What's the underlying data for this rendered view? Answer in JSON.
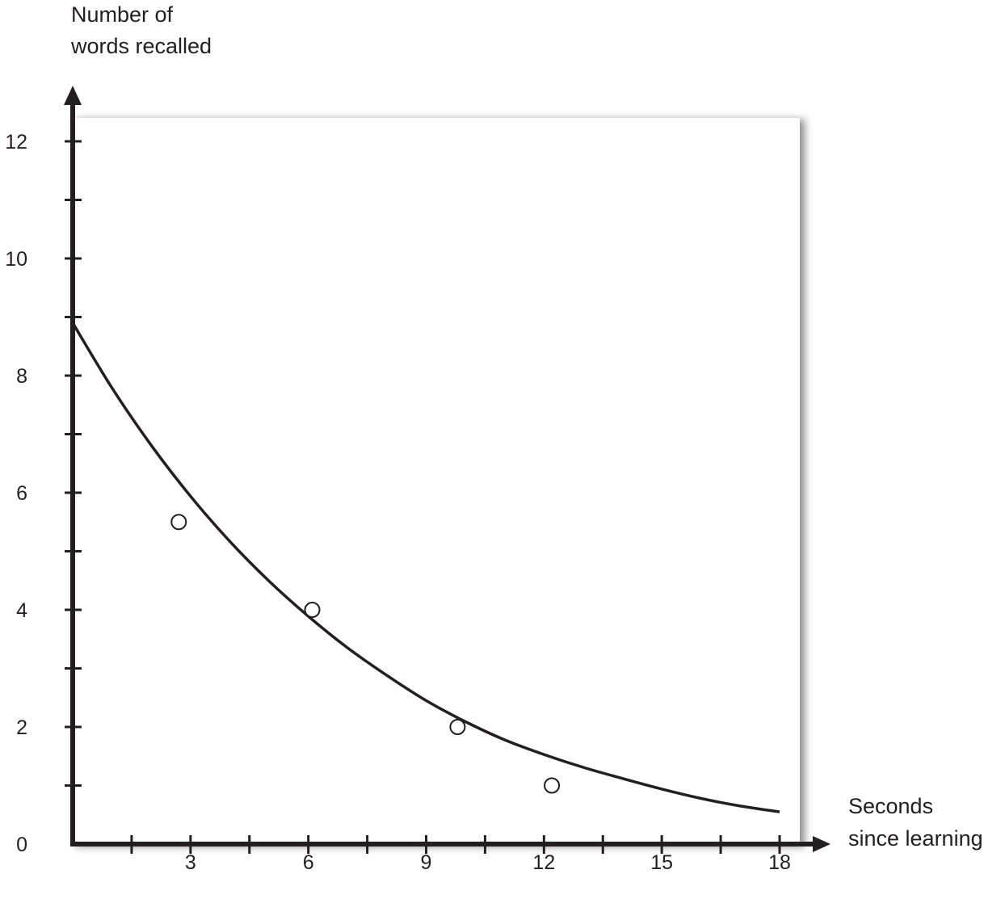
{
  "chart_data": {
    "type": "scatter",
    "title": "",
    "ylabel_lines": [
      "Number of",
      "words recalled"
    ],
    "xlabel_lines": [
      "Seconds",
      "since learning"
    ],
    "xlim": [
      0,
      18
    ],
    "ylim": [
      0,
      12
    ],
    "x_ticks": [
      3,
      6,
      9,
      12,
      15,
      18
    ],
    "x_minor_ticks": [
      1.5,
      4.5,
      7.5,
      10.5,
      13.5,
      16.5
    ],
    "y_ticks": [
      0,
      2,
      4,
      6,
      8,
      10,
      12
    ],
    "y_minor_ticks": [
      1,
      3,
      5,
      7,
      9,
      11
    ],
    "points": [
      {
        "x": 2.7,
        "y": 5.5
      },
      {
        "x": 6.1,
        "y": 4.0
      },
      {
        "x": 9.8,
        "y": 2.0
      },
      {
        "x": 12.2,
        "y": 1.0
      }
    ],
    "curve": {
      "type": "line",
      "x": [
        0,
        1,
        2,
        3,
        4,
        5,
        6,
        7,
        8,
        9,
        10,
        11,
        12,
        13,
        14,
        15,
        16,
        17,
        18
      ],
      "y": [
        8.9,
        7.79,
        6.81,
        5.94,
        5.17,
        4.49,
        3.89,
        3.35,
        2.88,
        2.45,
        2.09,
        1.78,
        1.53,
        1.31,
        1.12,
        0.94,
        0.78,
        0.65,
        0.55
      ]
    },
    "grid": false,
    "legend": "none",
    "colors": {
      "axis": "#231f20",
      "curve": "#231f20",
      "plot_background": "#ffffff"
    }
  }
}
